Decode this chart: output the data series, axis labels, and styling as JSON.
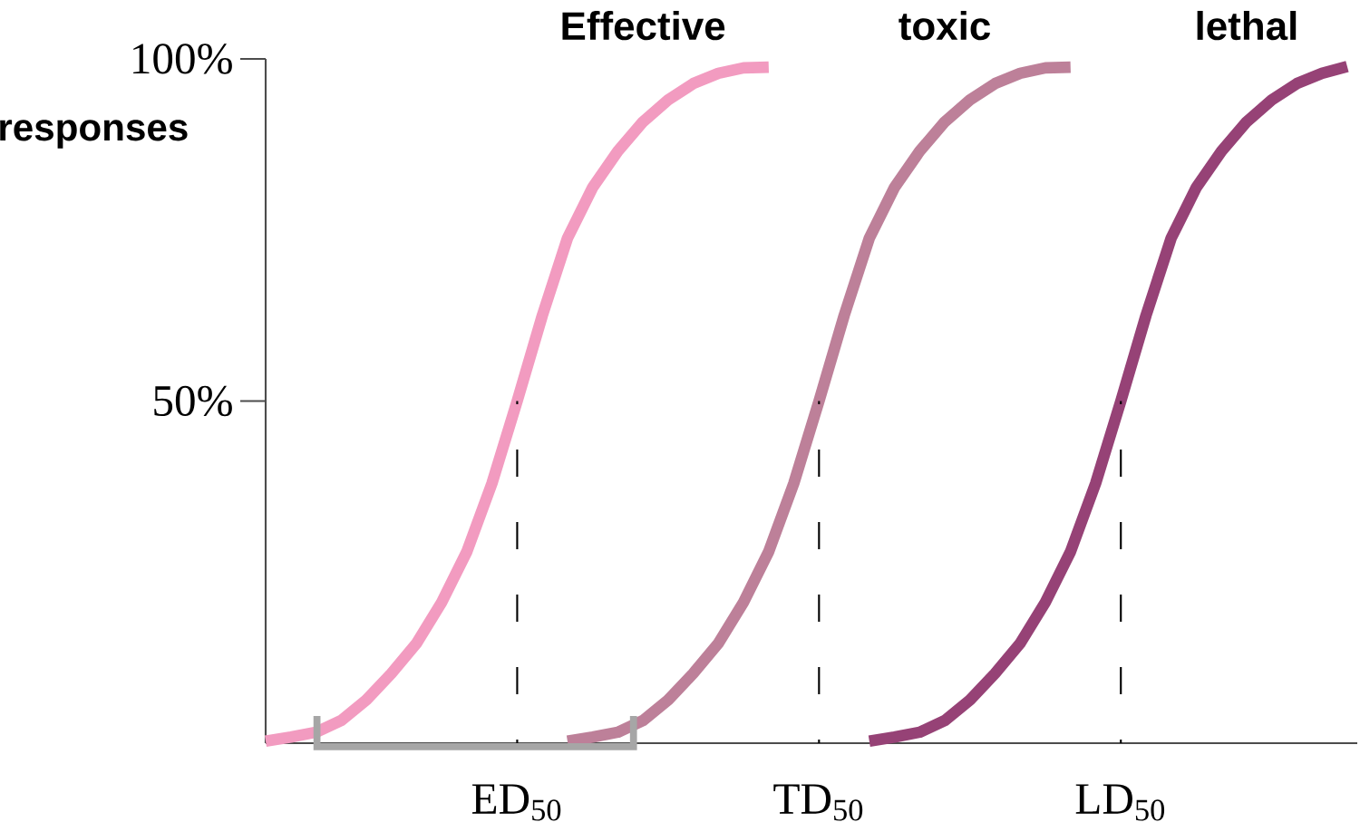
{
  "chart_data": {
    "type": "line",
    "ylabel": "responses",
    "categories": [
      null,
      null,
      null,
      null,
      null,
      null,
      null,
      null,
      null,
      null,
      "ED$_{50}$",
      null,
      null,
      null,
      null,
      null,
      null,
      null,
      null,
      null,
      null,
      null,
      "TD$_{50}$",
      null,
      null,
      null,
      null,
      null,
      null,
      null,
      null,
      null,
      null,
      null,
      "LD$_{50}$",
      null,
      null,
      null,
      null,
      null,
      null,
      null,
      null,
      null
    ],
    "ylim": [
      0,
      100
    ],
    "yticks": [
      {
        "value": 50,
        "label": "50%"
      },
      {
        "value": 100,
        "label": "100%"
      }
    ],
    "series": [
      {
        "name": "Effective",
        "color": "#f29bc0",
        "values": [
          0.3,
          0.9,
          1.6,
          3.3,
          6.3,
          10.2,
          14.6,
          20.6,
          28,
          38,
          50,
          62.5,
          73.8,
          81.2,
          86.5,
          90.8,
          94,
          96.4,
          97.9,
          98.7,
          98.8,
          null,
          null,
          null,
          null,
          null,
          null,
          null,
          null,
          null,
          null,
          null,
          null,
          null,
          null,
          null,
          null,
          null,
          null,
          null,
          null,
          null,
          null,
          null
        ]
      },
      {
        "name": "toxic",
        "color": "#bd8099",
        "values": [
          null,
          null,
          null,
          null,
          null,
          null,
          null,
          null,
          null,
          null,
          null,
          null,
          0.3,
          0.9,
          1.6,
          3.3,
          6.3,
          10.2,
          14.6,
          20.6,
          28,
          38,
          50,
          62.5,
          73.8,
          81.2,
          86.5,
          90.8,
          94,
          96.4,
          97.9,
          98.7,
          98.8,
          null,
          null,
          null,
          null,
          null,
          null,
          null,
          null,
          null,
          null,
          null
        ]
      },
      {
        "name": "lethal",
        "color": "#964276",
        "values": [
          null,
          null,
          null,
          null,
          null,
          null,
          null,
          null,
          null,
          null,
          null,
          null,
          null,
          null,
          null,
          null,
          null,
          null,
          null,
          null,
          null,
          null,
          null,
          null,
          0.3,
          0.9,
          1.6,
          3.3,
          6.3,
          10.2,
          14.6,
          20.6,
          28,
          38,
          50,
          62.5,
          73.8,
          81.2,
          86.5,
          90.8,
          94,
          96.4,
          97.9,
          98.9
        ]
      },
      {
        "color": "#000000",
        "line_style": "dashed",
        "x": [
          "ED$_{50}$",
          "ED$_{50}$"
        ],
        "values": [
          0,
          50
        ]
      },
      {
        "color": "#000000",
        "line_style": "dashed",
        "x": [
          "TD$_{50}$",
          "TD$_{50}$"
        ],
        "values": [
          0,
          50
        ]
      },
      {
        "color": "#000000",
        "line_style": "dashed",
        "x": [
          "LD$_{50}$",
          "LD$_{50}$"
        ],
        "values": [
          0,
          50
        ]
      }
    ]
  }
}
